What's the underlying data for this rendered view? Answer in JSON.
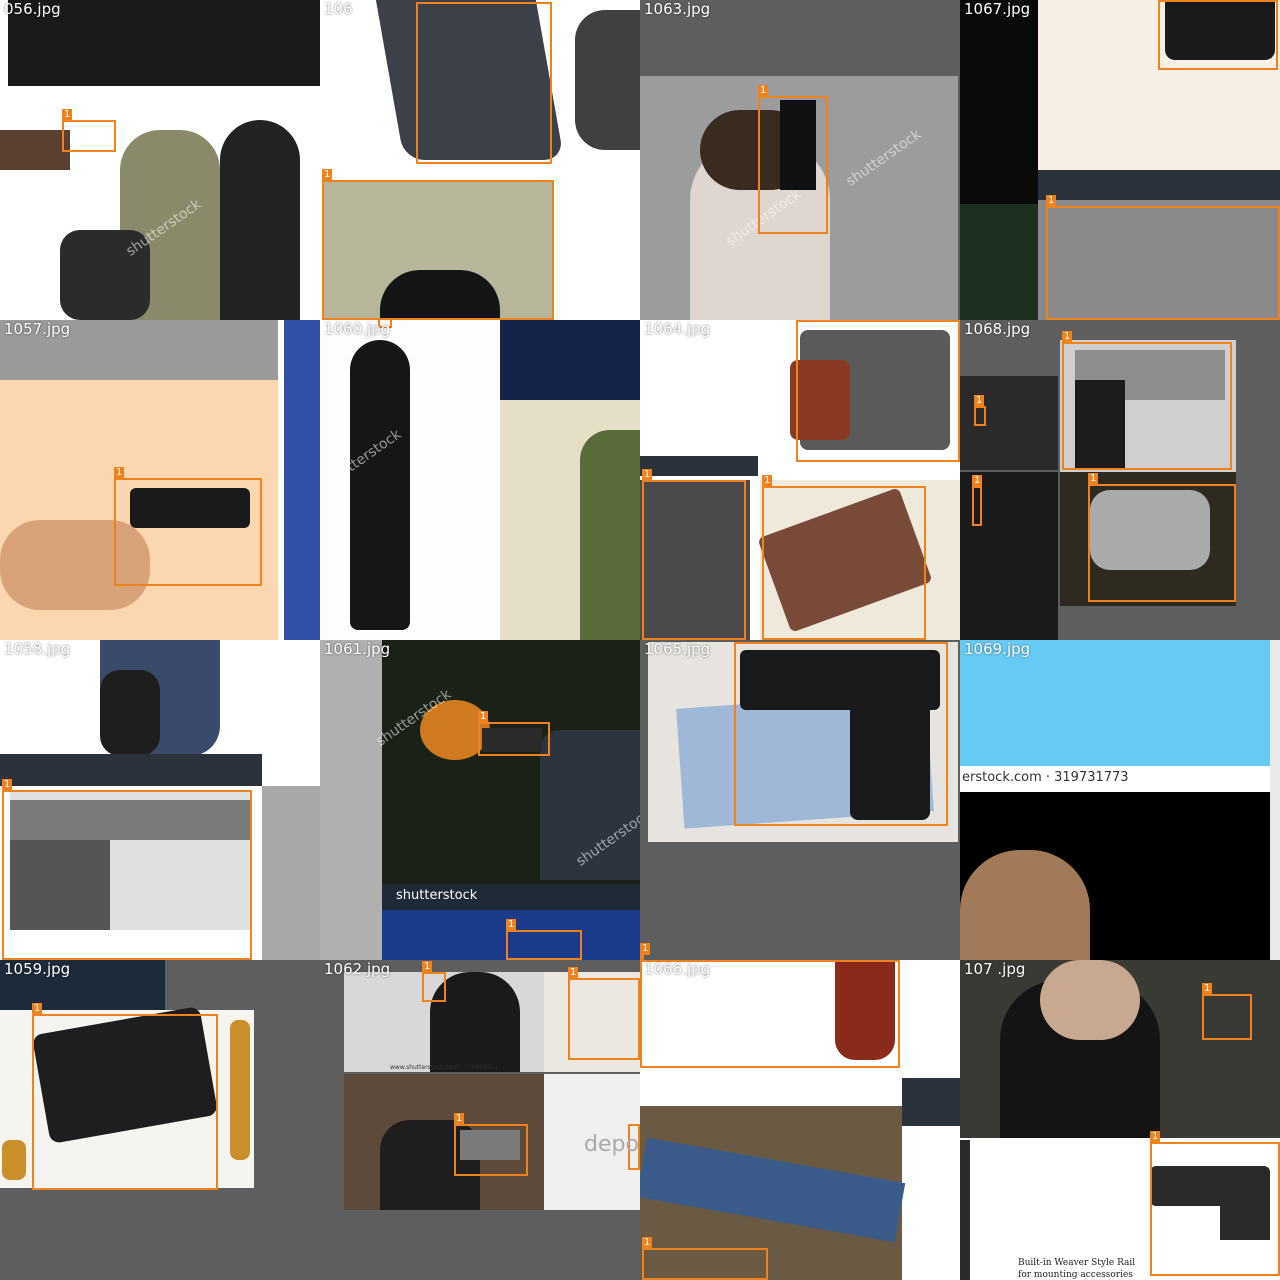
{
  "tiles": [
    {
      "file": "056.jpg",
      "col": 0,
      "row": 0
    },
    {
      "file": "106",
      "col": 1,
      "row": 0
    },
    {
      "file": "1063.jpg",
      "col": 2,
      "row": 0
    },
    {
      "file": "1067.jpg",
      "col": 3,
      "row": 0
    },
    {
      "file": "1057.jpg",
      "col": 0,
      "row": 1
    },
    {
      "file": "1060.jpg",
      "col": 1,
      "row": 1
    },
    {
      "file": "1064.jpg",
      "col": 2,
      "row": 1
    },
    {
      "file": "1068.jpg",
      "col": 3,
      "row": 1
    },
    {
      "file": "1058.jpg",
      "col": 0,
      "row": 2
    },
    {
      "file": "1061.jpg",
      "col": 1,
      "row": 2
    },
    {
      "file": "1065.jpg",
      "col": 2,
      "row": 2
    },
    {
      "file": "1069.jpg",
      "col": 3,
      "row": 2
    },
    {
      "file": "1059.jpg",
      "col": 0,
      "row": 3
    },
    {
      "file": "1062.jpg",
      "col": 1,
      "row": 3
    },
    {
      "file": "1066.jpg",
      "col": 2,
      "row": 3
    },
    {
      "file": "107 .jpg",
      "col": 3,
      "row": 3
    }
  ],
  "class_label": "1",
  "watermarks": {
    "shutterstock": "shutterstock",
    "depo": "depo",
    "stock_id": "erstock.com · 319731773",
    "small_url": "www.shutterstock.com · 156903471"
  },
  "captions": {
    "weaver_line1": "Built-in Weaver Style Rail",
    "weaver_line2": "for mounting accessories"
  },
  "colors": {
    "bbox": "#f0821e",
    "background": "#5e5e5e"
  }
}
